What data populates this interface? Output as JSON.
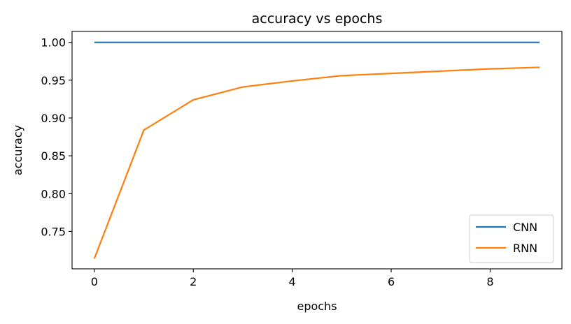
{
  "chart_data": {
    "type": "line",
    "title": "accuracy vs epochs",
    "xlabel": "epochs",
    "ylabel": "accuracy",
    "xlim": [
      -0.45,
      9.45
    ],
    "ylim": [
      0.7005,
      1.0145
    ],
    "xticks": [
      0,
      2,
      4,
      6,
      8
    ],
    "xtick_labels": [
      "0",
      "2",
      "4",
      "6",
      "8"
    ],
    "yticks": [
      0.75,
      0.8,
      0.85,
      0.9,
      0.95,
      1.0
    ],
    "ytick_labels": [
      "0.75",
      "0.80",
      "0.85",
      "0.90",
      "0.95",
      "1.00"
    ],
    "grid": false,
    "legend_position": "lower-right",
    "x": [
      0,
      1,
      2,
      3,
      4,
      5,
      6,
      7,
      8,
      9
    ],
    "series": [
      {
        "name": "CNN",
        "color": "#1f77b4",
        "values": [
          1.0,
          1.0,
          1.0,
          1.0,
          1.0,
          1.0,
          1.0,
          1.0,
          1.0,
          1.0
        ]
      },
      {
        "name": "RNN",
        "color": "#ff7f0e",
        "values": [
          0.714,
          0.884,
          0.924,
          0.941,
          0.949,
          0.956,
          0.959,
          0.962,
          0.965,
          0.967
        ]
      }
    ]
  }
}
